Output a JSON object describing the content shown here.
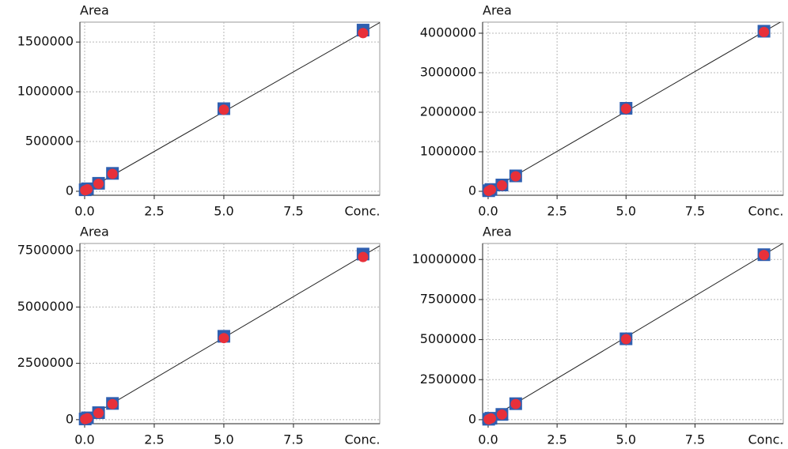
{
  "chart_data": [
    {
      "type": "scatter",
      "ylabel": "Area",
      "xlabel": "Conc.",
      "xlim": [
        -0.17,
        10.6
      ],
      "xticks": [
        {
          "value": 0,
          "label": "0.0"
        },
        2.5,
        {
          "value": 5,
          "label": "5.0"
        },
        7.5
      ],
      "ylim": [
        -40000,
        1700000
      ],
      "yticks": [
        0,
        500000,
        1000000,
        1500000
      ],
      "grid": true,
      "x": [
        0.02,
        0.1,
        0.5,
        1,
        5,
        10
      ],
      "series": [
        {
          "color": "#2f5fb0",
          "marker": "square",
          "values": [
            15000,
            25000,
            80000,
            180000,
            830000,
            1620000
          ]
        },
        {
          "color": "#e8303a",
          "marker": "circle",
          "values": [
            10000,
            20000,
            75000,
            175000,
            820000,
            1590000
          ]
        }
      ],
      "fit": {
        "slope": 160000,
        "intercept": 0
      }
    },
    {
      "type": "scatter",
      "ylabel": "Area",
      "xlabel": "Conc.",
      "xlim": [
        -0.2,
        10.7
      ],
      "xticks": [
        {
          "value": 0,
          "label": "0.0"
        },
        2.5,
        {
          "value": 5,
          "label": "5.0"
        },
        7.5
      ],
      "ylim": [
        -100000,
        4280000
      ],
      "yticks": [
        0,
        1000000,
        2000000,
        3000000,
        4000000
      ],
      "grid": true,
      "x": [
        0.02,
        0.1,
        0.5,
        1,
        5,
        10
      ],
      "series": [
        {
          "color": "#2f5fb0",
          "marker": "square",
          "values": [
            15000,
            45000,
            160000,
            390000,
            2100000,
            4050000
          ]
        },
        {
          "color": "#e8303a",
          "marker": "circle",
          "values": [
            10000,
            40000,
            150000,
            380000,
            2090000,
            4030000
          ]
        }
      ],
      "fit": {
        "slope": 404000,
        "intercept": 0
      }
    },
    {
      "type": "scatter",
      "ylabel": "Area",
      "xlabel": "Conc.",
      "xlim": [
        -0.17,
        10.6
      ],
      "xticks": [
        {
          "value": 0,
          "label": "0.0"
        },
        2.5,
        {
          "value": 5,
          "label": "5.0"
        },
        7.5
      ],
      "ylim": [
        -180000,
        7820000
      ],
      "yticks": [
        0,
        2500000,
        5000000,
        7500000
      ],
      "grid": true,
      "x": [
        0.02,
        0.1,
        0.5,
        1,
        5,
        10
      ],
      "series": [
        {
          "color": "#2f5fb0",
          "marker": "square",
          "values": [
            30000,
            80000,
            310000,
            720000,
            3700000,
            7350000
          ]
        },
        {
          "color": "#e8303a",
          "marker": "circle",
          "values": [
            20000,
            60000,
            290000,
            690000,
            3620000,
            7220000
          ]
        }
      ],
      "fit": {
        "slope": 728000,
        "intercept": 0
      }
    },
    {
      "type": "scatter",
      "ylabel": "Area",
      "xlabel": "Conc.",
      "xlim": [
        -0.2,
        10.7
      ],
      "xticks": [
        {
          "value": 0,
          "label": "0.0"
        },
        2.5,
        {
          "value": 5,
          "label": "5.0"
        },
        7.5
      ],
      "ylim": [
        -250000,
        11000000
      ],
      "yticks": [
        0,
        2500000,
        5000000,
        7500000,
        10000000
      ],
      "grid": true,
      "x": [
        0.02,
        0.1,
        0.5,
        1,
        5,
        10
      ],
      "series": [
        {
          "color": "#2f5fb0",
          "marker": "square",
          "values": [
            30000,
            90000,
            330000,
            1000000,
            5050000,
            10300000
          ]
        },
        {
          "color": "#e8303a",
          "marker": "circle",
          "values": [
            20000,
            80000,
            320000,
            980000,
            5030000,
            10280000
          ]
        }
      ],
      "fit": {
        "slope": 1030000,
        "intercept": 0
      }
    }
  ]
}
